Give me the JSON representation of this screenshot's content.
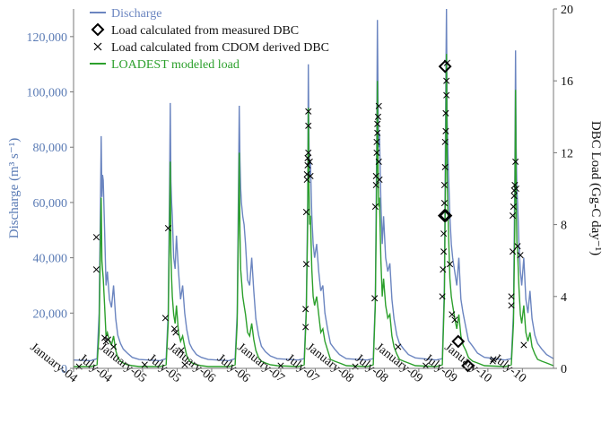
{
  "chart_data": {
    "type": "line",
    "title": "",
    "xlabel": "",
    "ylabel_left": "Discharge (m³ s⁻¹)",
    "ylabel_right": "DBC Load (Gg-C day⁻¹)",
    "ylim_left": [
      0,
      130000
    ],
    "ylim_right": [
      0,
      20
    ],
    "yticks_left": [
      "0",
      "20,000",
      "40,000",
      "60,000",
      "80,000",
      "100,000",
      "120,000"
    ],
    "yticks_right": [
      "0",
      "4",
      "8",
      "12",
      "16",
      "20"
    ],
    "x_range_years": [
      2004.0,
      2010.95
    ],
    "x_ticks": [
      {
        "label": "January-04",
        "pos": 2004.0
      },
      {
        "label": "July-04",
        "pos": 2004.5
      },
      {
        "label": "January-05",
        "pos": 2005.0
      },
      {
        "label": "July-05",
        "pos": 2005.5
      },
      {
        "label": "January-06",
        "pos": 2006.0
      },
      {
        "label": "July-06",
        "pos": 2006.5
      },
      {
        "label": "January-07",
        "pos": 2007.0
      },
      {
        "label": "July-07",
        "pos": 2007.5
      },
      {
        "label": "January-08",
        "pos": 2008.0
      },
      {
        "label": "July-08",
        "pos": 2008.5
      },
      {
        "label": "January-09",
        "pos": 2009.0
      },
      {
        "label": "July-09",
        "pos": 2009.5
      },
      {
        "label": "January-10",
        "pos": 2010.0
      },
      {
        "label": "July-10",
        "pos": 2010.5
      }
    ],
    "legend": [
      {
        "label": "Discharge",
        "marker": "line",
        "color": "#6b85c0"
      },
      {
        "label": "Load calculated from measured DBC",
        "marker": "diamond",
        "color": "#000000"
      },
      {
        "label": "Load calculated from CDOM derived DBC",
        "marker": "x",
        "color": "#000000"
      },
      {
        "label": "LOADEST modeled load",
        "marker": "line",
        "color": "#2ca02c"
      }
    ],
    "series_discharge": {
      "name": "Discharge",
      "axis": "left",
      "x": [
        2004.0,
        2004.25,
        2004.34,
        2004.37,
        2004.39,
        2004.4,
        2004.41,
        2004.42,
        2004.43,
        2004.45,
        2004.47,
        2004.49,
        2004.52,
        2004.55,
        2004.58,
        2004.61,
        2004.64,
        2004.68,
        2004.72,
        2004.78,
        2004.85,
        2004.95,
        2005.25,
        2005.34,
        2005.37,
        2005.39,
        2005.4,
        2005.41,
        2005.42,
        2005.43,
        2005.45,
        2005.47,
        2005.49,
        2005.52,
        2005.55,
        2005.58,
        2005.61,
        2005.64,
        2005.68,
        2005.72,
        2005.78,
        2005.85,
        2005.95,
        2006.25,
        2006.34,
        2006.37,
        2006.39,
        2006.4,
        2006.41,
        2006.42,
        2006.43,
        2006.45,
        2006.47,
        2006.49,
        2006.52,
        2006.55,
        2006.58,
        2006.61,
        2006.64,
        2006.68,
        2006.72,
        2006.78,
        2006.85,
        2006.95,
        2007.25,
        2007.34,
        2007.37,
        2007.39,
        2007.4,
        2007.41,
        2007.42,
        2007.43,
        2007.45,
        2007.47,
        2007.49,
        2007.52,
        2007.55,
        2007.58,
        2007.61,
        2007.64,
        2007.68,
        2007.72,
        2007.78,
        2007.85,
        2007.95,
        2008.25,
        2008.34,
        2008.37,
        2008.39,
        2008.4,
        2008.41,
        2008.42,
        2008.43,
        2008.45,
        2008.47,
        2008.49,
        2008.52,
        2008.55,
        2008.58,
        2008.61,
        2008.64,
        2008.68,
        2008.72,
        2008.78,
        2008.85,
        2008.95,
        2009.25,
        2009.34,
        2009.37,
        2009.39,
        2009.4,
        2009.41,
        2009.42,
        2009.43,
        2009.45,
        2009.47,
        2009.49,
        2009.52,
        2009.55,
        2009.58,
        2009.61,
        2009.64,
        2009.68,
        2009.72,
        2009.78,
        2009.85,
        2009.95,
        2010.25,
        2010.34,
        2010.37,
        2010.39,
        2010.4,
        2010.41,
        2010.42,
        2010.43,
        2010.45,
        2010.47,
        2010.49,
        2010.52,
        2010.55,
        2010.58,
        2010.61,
        2010.64,
        2010.68,
        2010.72,
        2010.78,
        2010.85,
        2010.95
      ],
      "y": [
        3000,
        2800,
        3500,
        20000,
        60000,
        84000,
        62000,
        70000,
        68000,
        50000,
        30000,
        35000,
        25000,
        22000,
        30000,
        18000,
        12000,
        9000,
        7000,
        5500,
        4000,
        3200,
        2800,
        3500,
        20000,
        65000,
        96000,
        68000,
        60000,
        55000,
        40000,
        36000,
        48000,
        35000,
        25000,
        30000,
        20000,
        14000,
        9000,
        7000,
        5000,
        4000,
        3200,
        2800,
        3500,
        20000,
        70000,
        95000,
        75000,
        65000,
        60000,
        55000,
        52000,
        45000,
        32000,
        30000,
        40000,
        28000,
        18000,
        12000,
        8000,
        6000,
        4500,
        3500,
        3000,
        3500,
        22000,
        60000,
        110000,
        80000,
        70000,
        75000,
        55000,
        45000,
        40000,
        45000,
        35000,
        28000,
        30000,
        20000,
        14000,
        9000,
        7000,
        5000,
        3500,
        3000,
        3500,
        25000,
        80000,
        126000,
        95000,
        80000,
        85000,
        60000,
        45000,
        55000,
        40000,
        35000,
        38000,
        25000,
        18000,
        12000,
        9000,
        7000,
        5000,
        3800,
        3000,
        3500,
        30000,
        100000,
        130000,
        90000,
        80000,
        70000,
        55000,
        45000,
        40000,
        35000,
        30000,
        40000,
        25000,
        20000,
        15000,
        10000,
        8000,
        5500,
        4000,
        3000,
        3500,
        20000,
        70000,
        115000,
        80000,
        65000,
        60000,
        45000,
        35000,
        30000,
        40000,
        25000,
        20000,
        28000,
        18000,
        12000,
        9000,
        7000,
        5000,
        3500
      ]
    },
    "series_loadest": {
      "name": "LOADEST modeled load",
      "axis": "right",
      "x": [
        2004.0,
        2004.25,
        2004.34,
        2004.37,
        2004.39,
        2004.4,
        2004.41,
        2004.42,
        2004.43,
        2004.45,
        2004.47,
        2004.49,
        2004.52,
        2004.55,
        2004.58,
        2004.61,
        2004.64,
        2004.68,
        2004.72,
        2004.78,
        2004.85,
        2004.95,
        2005.25,
        2005.34,
        2005.37,
        2005.39,
        2005.4,
        2005.41,
        2005.42,
        2005.43,
        2005.45,
        2005.47,
        2005.49,
        2005.52,
        2005.55,
        2005.58,
        2005.61,
        2005.64,
        2005.68,
        2005.72,
        2005.78,
        2005.85,
        2005.95,
        2006.25,
        2006.34,
        2006.37,
        2006.39,
        2006.4,
        2006.41,
        2006.42,
        2006.43,
        2006.45,
        2006.47,
        2006.49,
        2006.52,
        2006.55,
        2006.58,
        2006.61,
        2006.64,
        2006.68,
        2006.72,
        2006.78,
        2006.85,
        2006.95,
        2007.25,
        2007.34,
        2007.37,
        2007.39,
        2007.4,
        2007.41,
        2007.42,
        2007.43,
        2007.45,
        2007.47,
        2007.49,
        2007.52,
        2007.55,
        2007.58,
        2007.61,
        2007.64,
        2007.68,
        2007.72,
        2007.78,
        2007.85,
        2007.95,
        2008.25,
        2008.34,
        2008.37,
        2008.39,
        2008.4,
        2008.41,
        2008.42,
        2008.43,
        2008.45,
        2008.47,
        2008.49,
        2008.52,
        2008.55,
        2008.58,
        2008.61,
        2008.64,
        2008.68,
        2008.72,
        2008.78,
        2008.85,
        2008.95,
        2009.25,
        2009.34,
        2009.37,
        2009.39,
        2009.4,
        2009.41,
        2009.42,
        2009.43,
        2009.45,
        2009.47,
        2009.49,
        2009.52,
        2009.55,
        2009.58,
        2009.61,
        2009.64,
        2009.68,
        2009.72,
        2009.78,
        2009.85,
        2009.95,
        2010.25,
        2010.34,
        2010.37,
        2010.39,
        2010.4,
        2010.41,
        2010.42,
        2010.43,
        2010.45,
        2010.47,
        2010.49,
        2010.52,
        2010.55,
        2010.58,
        2010.61,
        2010.64,
        2010.68,
        2010.72,
        2010.78,
        2010.85,
        2010.95
      ],
      "y": [
        0.1,
        0.1,
        0.2,
        2.0,
        7.0,
        9.5,
        6.0,
        5.5,
        5.0,
        3.5,
        1.8,
        2.0,
        1.5,
        1.3,
        1.8,
        1.0,
        0.6,
        0.4,
        0.3,
        0.2,
        0.15,
        0.1,
        0.1,
        0.2,
        2.5,
        8.0,
        11.5,
        6.5,
        5.0,
        4.0,
        3.0,
        2.5,
        3.5,
        2.0,
        1.5,
        1.8,
        1.2,
        0.7,
        0.4,
        0.3,
        0.2,
        0.15,
        0.1,
        0.1,
        0.2,
        2.5,
        8.5,
        12.0,
        7.5,
        5.5,
        5.0,
        4.0,
        3.5,
        3.0,
        2.0,
        1.8,
        2.5,
        1.6,
        1.0,
        0.6,
        0.4,
        0.3,
        0.2,
        0.15,
        0.1,
        0.2,
        3.0,
        8.0,
        14.5,
        10.0,
        8.0,
        8.5,
        5.5,
        4.0,
        3.5,
        4.0,
        3.0,
        2.0,
        2.2,
        1.5,
        1.0,
        0.5,
        0.4,
        0.3,
        0.15,
        0.1,
        0.2,
        3.5,
        10.0,
        16.0,
        11.0,
        9.0,
        9.5,
        6.0,
        4.0,
        5.0,
        3.5,
        2.8,
        3.0,
        1.8,
        1.2,
        0.8,
        0.5,
        0.4,
        0.3,
        0.15,
        0.1,
        0.2,
        4.0,
        12.0,
        17.5,
        10.5,
        9.0,
        7.5,
        5.0,
        4.0,
        3.5,
        2.8,
        2.2,
        3.0,
        1.8,
        1.3,
        1.0,
        0.6,
        0.4,
        0.3,
        0.15,
        0.1,
        0.2,
        2.5,
        8.0,
        15.5,
        9.5,
        7.0,
        6.5,
        4.5,
        3.0,
        2.5,
        3.5,
        2.0,
        1.5,
        2.0,
        1.2,
        0.8,
        0.5,
        0.4,
        0.3,
        0.15
      ]
    },
    "measured_dbc_points": [
      {
        "x": 2009.38,
        "y": 16.8
      },
      {
        "x": 2009.37,
        "y": 8.5
      },
      {
        "x": 2009.39,
        "y": 8.5
      },
      {
        "x": 2009.57,
        "y": 1.5
      },
      {
        "x": 2009.71,
        "y": 0.15
      }
    ],
    "cdom_dbc_points": [
      {
        "x": 2004.08,
        "y": 0.1
      },
      {
        "x": 2004.33,
        "y": 7.3
      },
      {
        "x": 2004.33,
        "y": 5.5
      },
      {
        "x": 2004.45,
        "y": 1.7
      },
      {
        "x": 2004.47,
        "y": 1.5
      },
      {
        "x": 2004.5,
        "y": 1.6
      },
      {
        "x": 2004.58,
        "y": 1.2
      },
      {
        "x": 2005.03,
        "y": 0.2
      },
      {
        "x": 2005.33,
        "y": 2.8
      },
      {
        "x": 2005.37,
        "y": 7.8
      },
      {
        "x": 2005.46,
        "y": 2.2
      },
      {
        "x": 2005.48,
        "y": 2.0
      },
      {
        "x": 2005.56,
        "y": 1.0
      },
      {
        "x": 2005.61,
        "y": 0.2
      },
      {
        "x": 2007.0,
        "y": 0.15
      },
      {
        "x": 2007.36,
        "y": 2.3
      },
      {
        "x": 2007.36,
        "y": 3.3
      },
      {
        "x": 2007.37,
        "y": 5.8
      },
      {
        "x": 2007.37,
        "y": 8.7
      },
      {
        "x": 2007.38,
        "y": 10.5
      },
      {
        "x": 2007.38,
        "y": 10.8
      },
      {
        "x": 2007.39,
        "y": 11.3
      },
      {
        "x": 2007.39,
        "y": 11.7
      },
      {
        "x": 2007.4,
        "y": 12.0
      },
      {
        "x": 2007.4,
        "y": 13.5
      },
      {
        "x": 2007.4,
        "y": 14.3
      },
      {
        "x": 2007.42,
        "y": 11.5
      },
      {
        "x": 2007.43,
        "y": 10.7
      },
      {
        "x": 2008.08,
        "y": 0.1
      },
      {
        "x": 2008.36,
        "y": 3.9
      },
      {
        "x": 2008.37,
        "y": 9.0
      },
      {
        "x": 2008.38,
        "y": 10.2
      },
      {
        "x": 2008.38,
        "y": 10.7
      },
      {
        "x": 2008.39,
        "y": 12.0
      },
      {
        "x": 2008.39,
        "y": 12.6
      },
      {
        "x": 2008.4,
        "y": 13.1
      },
      {
        "x": 2008.4,
        "y": 13.6
      },
      {
        "x": 2008.41,
        "y": 14.0
      },
      {
        "x": 2008.42,
        "y": 14.6
      },
      {
        "x": 2008.42,
        "y": 11.5
      },
      {
        "x": 2008.43,
        "y": 10.5
      },
      {
        "x": 2008.7,
        "y": 1.2
      },
      {
        "x": 2009.1,
        "y": 0.15
      },
      {
        "x": 2009.34,
        "y": 4.0
      },
      {
        "x": 2009.35,
        "y": 5.5
      },
      {
        "x": 2009.36,
        "y": 6.5
      },
      {
        "x": 2009.36,
        "y": 7.5
      },
      {
        "x": 2009.37,
        "y": 9.2
      },
      {
        "x": 2009.37,
        "y": 10.2
      },
      {
        "x": 2009.38,
        "y": 11.2
      },
      {
        "x": 2009.38,
        "y": 12.6
      },
      {
        "x": 2009.39,
        "y": 13.2
      },
      {
        "x": 2009.39,
        "y": 14.2
      },
      {
        "x": 2009.4,
        "y": 15.2
      },
      {
        "x": 2009.4,
        "y": 16.0
      },
      {
        "x": 2009.41,
        "y": 17.0
      },
      {
        "x": 2009.45,
        "y": 5.8
      },
      {
        "x": 2009.48,
        "y": 3.0
      },
      {
        "x": 2009.52,
        "y": 2.7
      },
      {
        "x": 2010.07,
        "y": 0.4
      },
      {
        "x": 2010.08,
        "y": 0.5
      },
      {
        "x": 2010.34,
        "y": 4.0
      },
      {
        "x": 2010.34,
        "y": 3.5
      },
      {
        "x": 2010.36,
        "y": 6.5
      },
      {
        "x": 2010.36,
        "y": 8.5
      },
      {
        "x": 2010.37,
        "y": 9.0
      },
      {
        "x": 2010.38,
        "y": 9.6
      },
      {
        "x": 2010.38,
        "y": 9.9
      },
      {
        "x": 2010.39,
        "y": 10.2
      },
      {
        "x": 2010.4,
        "y": 11.5
      },
      {
        "x": 2010.41,
        "y": 10.0
      },
      {
        "x": 2010.43,
        "y": 6.8
      },
      {
        "x": 2010.47,
        "y": 6.3
      },
      {
        "x": 2010.52,
        "y": 1.3
      }
    ],
    "colors": {
      "discharge": "#6b85c0",
      "loadest": "#2ca02c",
      "markers": "#000000",
      "left_axis_text": "#5a7bb5"
    }
  }
}
